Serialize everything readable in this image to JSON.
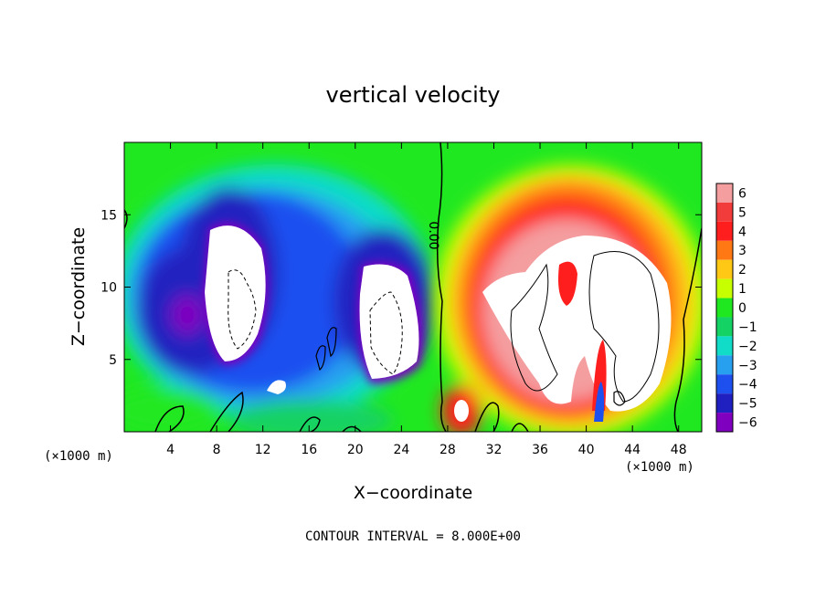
{
  "chart_data": {
    "type": "heatmap",
    "title": "vertical velocity",
    "xlabel": "X−coordinate",
    "ylabel": "Z−coordinate",
    "x_unit": "(×1000 m)",
    "y_unit": "(×1000 m)",
    "xlim": [
      0,
      50
    ],
    "ylim": [
      0,
      20
    ],
    "x_ticks": [
      4,
      8,
      12,
      16,
      20,
      24,
      28,
      32,
      36,
      40,
      44,
      48
    ],
    "y_ticks": [
      5,
      10,
      15
    ],
    "colorbar": {
      "levels": [
        "6",
        "5",
        "4",
        "3",
        "2",
        "1",
        "0",
        "−1",
        "−2",
        "−3",
        "−4",
        "−5",
        "−6"
      ],
      "colors": [
        "#f49ea0",
        "#f23c3c",
        "#ff1e1e",
        "#ff7814",
        "#ffc814",
        "#c8ff00",
        "#20e820",
        "#14d264",
        "#10dcc8",
        "#28a0f0",
        "#1e50f0",
        "#2020c0",
        "#8000c0"
      ]
    },
    "contour_label": "0.00",
    "footer": "CONTOUR INTERVAL = 8.000E+00",
    "features": [
      {
        "sign": "negative",
        "x_center": 9.5,
        "z_center": 9.5,
        "peak": -6
      },
      {
        "sign": "negative",
        "x_center": 22.5,
        "z_center": 8.5,
        "peak": -6
      },
      {
        "sign": "positive",
        "x_center": 38.0,
        "z_center": 9.0,
        "peak": 6
      }
    ]
  },
  "colors": {
    "background_field": "#20e820",
    "saturated": "#ffffff"
  }
}
